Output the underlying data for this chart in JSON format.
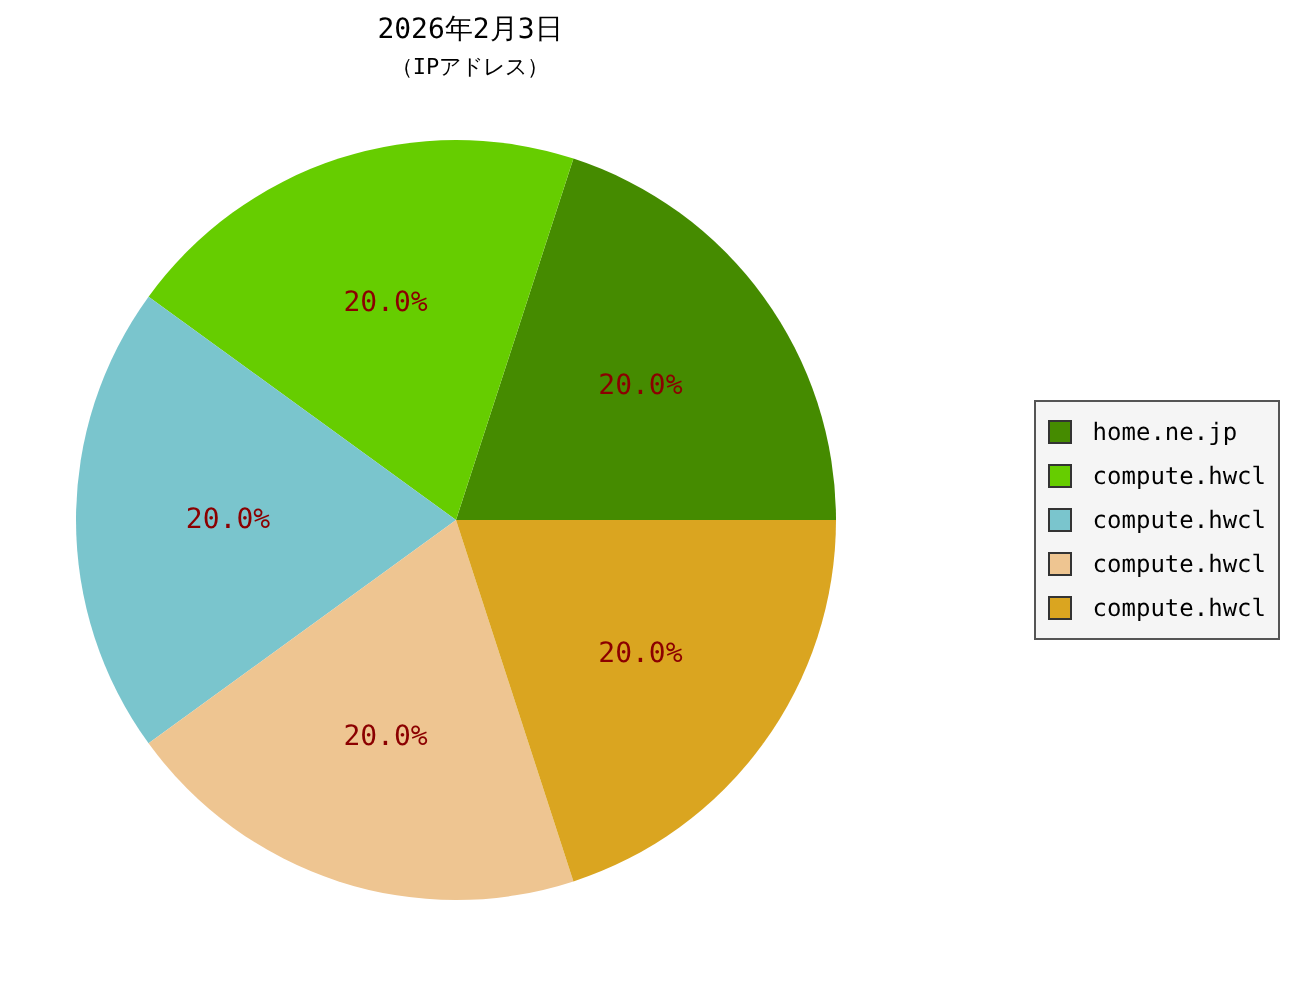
{
  "chart_data": {
    "type": "pie",
    "title": "2026年2月3日",
    "subtitle": "（IPアドレス）",
    "categories": [
      "home.ne.jp",
      "compute.hwcl",
      "compute.hwcl",
      "compute.hwcl",
      "compute.hwcl"
    ],
    "values": [
      20,
      20,
      20,
      20,
      20
    ],
    "colors": [
      "#458b00",
      "#66cd00",
      "#7ac5cd",
      "#eec591",
      "#daa520"
    ],
    "value_labels": [
      "20.0%",
      "20.0%",
      "20.0%",
      "20.0%",
      "20.0%"
    ],
    "legend": "right"
  }
}
